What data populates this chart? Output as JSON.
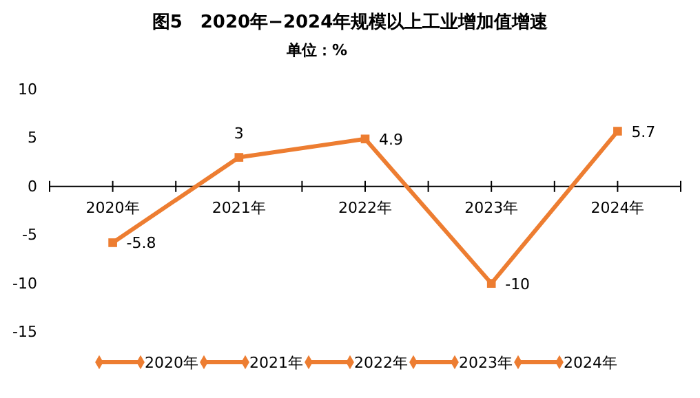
{
  "chart_data": {
    "type": "line",
    "title": "图5　2020年−2024年规模以上工业增加值增速",
    "subtitle": "单位：%",
    "categories": [
      "2020年",
      "2021年",
      "2022年",
      "2023年",
      "2024年"
    ],
    "series": [
      {
        "color": "#ed7d31",
        "values": [
          -5.8,
          3,
          4.9,
          -10,
          5.7
        ]
      }
    ],
    "ylim": [
      -15,
      10
    ],
    "yticks": [
      -15,
      -10,
      -5,
      0,
      5,
      10
    ],
    "data_labels": true,
    "marker": "square",
    "grid": false
  }
}
